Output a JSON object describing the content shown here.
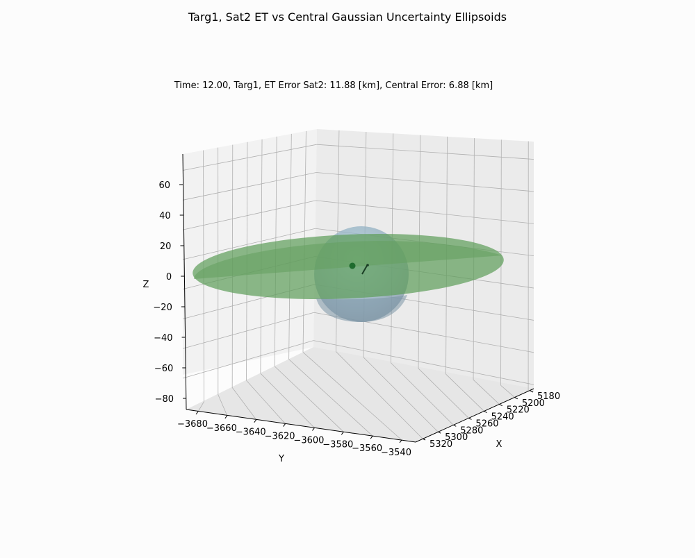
{
  "chart_data": {
    "type": "scatter",
    "title": "Targ1, Sat2 ET vs Central Gaussian Uncertainty Ellipsoids",
    "subtitle": "Time: 12.00, Targ1, ET Error Sat2: 11.88 [km], Central Error: 6.88 [km]",
    "xlabel": "X",
    "ylabel": "Y",
    "zlabel": "Z",
    "x_ticks": [
      "5180",
      "5200",
      "5220",
      "5240",
      "5260",
      "5280",
      "5300",
      "5320"
    ],
    "y_ticks": [
      "−3680",
      "−3660",
      "−3640",
      "−3620",
      "−3600",
      "−3580",
      "−3560",
      "−3540"
    ],
    "z_ticks": [
      "60",
      "40",
      "20",
      "0",
      "−20",
      "−40",
      "−60",
      "−80"
    ],
    "grid": true,
    "colors": {
      "et_ellipsoid": "#5f9e5b",
      "central_ellipsoid": "#8fb8cc",
      "target_point": "#1f6b2e",
      "estimate_segment": "#1a3d24"
    },
    "series": [
      {
        "type": "ellipsoid",
        "error_km": 11.88
      },
      {
        "type": "ellipsoid",
        "error_km": 6.88
      }
    ]
  }
}
